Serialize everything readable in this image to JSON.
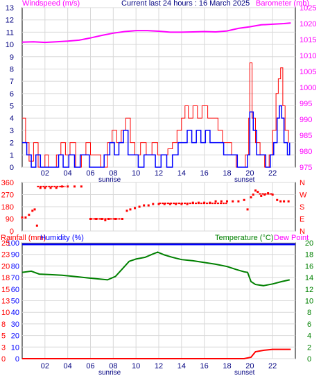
{
  "header": {
    "left": "Windspeed (m/s)",
    "center": "Current last 24 hours : 16 March 2025",
    "right": "Barometer (mb)"
  },
  "colors": {
    "wind": "#ff0000",
    "gust": "#ff0000",
    "avg": "#0000ff",
    "baro": "#ff00ff",
    "dir": "#ff0000",
    "temp": "#008000",
    "hum": "#0000ff",
    "rain": "#ff0000",
    "dew": "#ff00ff",
    "grid": "#d8d8d8"
  },
  "x_axis": {
    "ticks": [
      "02",
      "04",
      "06",
      "08",
      "10",
      "12",
      "14",
      "16",
      "18",
      "20",
      "22"
    ],
    "sunrise_label": "sunrise",
    "sunset_label": "sunset"
  },
  "chart_data": [
    {
      "type": "line",
      "name": "wind_and_pressure",
      "x_hours_range": [
        0,
        24
      ],
      "left_axis": {
        "label": "Windspeed (m/s)",
        "ylim": [
          0,
          13
        ],
        "ticks": [
          "0",
          "1",
          "2",
          "3",
          "4",
          "5",
          "6",
          "7",
          "8",
          "9",
          "10",
          "11",
          "12",
          "13"
        ]
      },
      "right_axis": {
        "label": "Barometer (mb)",
        "ylim": [
          975,
          1025
        ],
        "ticks": [
          "975",
          "980",
          "985",
          "990",
          "995",
          "1000",
          "1005",
          "1010",
          "1015",
          "1020",
          "1025"
        ]
      },
      "series": [
        {
          "name": "Barometer (mb)",
          "axis": "right",
          "points": [
            [
              0,
              1014.2
            ],
            [
              1,
              1014.3
            ],
            [
              2,
              1014.1
            ],
            [
              3,
              1014.3
            ],
            [
              4,
              1014.5
            ],
            [
              5,
              1014.8
            ],
            [
              6,
              1015.5
            ],
            [
              7,
              1016.3
            ],
            [
              8,
              1017
            ],
            [
              9,
              1017.5
            ],
            [
              10,
              1017.8
            ],
            [
              11,
              1017.8
            ],
            [
              12,
              1017.6
            ],
            [
              13,
              1017.3
            ],
            [
              14,
              1017.3
            ],
            [
              15,
              1017.4
            ],
            [
              16,
              1017.5
            ],
            [
              17,
              1017.4
            ],
            [
              18,
              1017.7
            ],
            [
              19,
              1018.5
            ],
            [
              20,
              1019
            ],
            [
              21,
              1019.6
            ],
            [
              22,
              1019.8
            ],
            [
              23,
              1020
            ],
            [
              23.6,
              1020.2
            ]
          ]
        },
        {
          "name": "gust",
          "axis": "left",
          "points": [
            [
              0,
              4
            ],
            [
              0.3,
              2
            ],
            [
              0.6,
              0.5
            ],
            [
              1,
              2
            ],
            [
              1.4,
              0
            ],
            [
              2,
              1
            ],
            [
              2.3,
              0
            ],
            [
              3,
              1
            ],
            [
              3.4,
              2
            ],
            [
              3.8,
              1
            ],
            [
              4.2,
              2
            ],
            [
              4.7,
              0
            ],
            [
              5.2,
              1
            ],
            [
              5.6,
              2
            ],
            [
              6,
              1
            ],
            [
              6.4,
              1
            ],
            [
              6.9,
              0
            ],
            [
              7.5,
              2
            ],
            [
              7.9,
              3
            ],
            [
              8.3,
              2
            ],
            [
              8.7,
              3
            ],
            [
              9.1,
              4
            ],
            [
              9.5,
              2
            ],
            [
              9.9,
              1
            ],
            [
              10.4,
              2
            ],
            [
              10.9,
              1
            ],
            [
              11.4,
              2
            ],
            [
              11.9,
              1
            ],
            [
              12.4,
              1
            ],
            [
              12.8,
              1.5
            ],
            [
              13.2,
              2
            ],
            [
              13.6,
              3
            ],
            [
              14,
              4
            ],
            [
              14.3,
              5
            ],
            [
              14.6,
              4
            ],
            [
              15,
              5
            ],
            [
              15.4,
              4
            ],
            [
              15.8,
              5
            ],
            [
              16.3,
              4
            ],
            [
              16.8,
              4
            ],
            [
              17.2,
              3
            ],
            [
              17.6,
              2
            ],
            [
              18,
              2
            ],
            [
              18.4,
              1
            ],
            [
              18.8,
              0
            ],
            [
              19.2,
              0
            ],
            [
              19.6,
              1
            ],
            [
              19.9,
              4
            ],
            [
              20,
              8.5
            ],
            [
              20.2,
              4
            ],
            [
              20.5,
              2
            ],
            [
              20.9,
              1
            ],
            [
              21.3,
              0
            ],
            [
              21.7,
              1
            ],
            [
              22,
              3
            ],
            [
              22.3,
              6
            ],
            [
              22.5,
              7.2
            ],
            [
              22.7,
              8.1
            ],
            [
              22.9,
              5
            ],
            [
              23.1,
              3
            ],
            [
              23.4,
              2
            ]
          ]
        },
        {
          "name": "wind",
          "axis": "left",
          "points": [
            [
              0,
              2
            ],
            [
              0.4,
              1
            ],
            [
              0.8,
              0
            ],
            [
              1.2,
              1
            ],
            [
              1.6,
              0
            ],
            [
              2.2,
              0
            ],
            [
              2.7,
              0
            ],
            [
              3.2,
              1
            ],
            [
              3.6,
              0
            ],
            [
              4.1,
              1
            ],
            [
              4.6,
              0
            ],
            [
              5.1,
              1
            ],
            [
              5.5,
              1
            ],
            [
              5.9,
              0
            ],
            [
              6.6,
              0
            ],
            [
              7.2,
              1
            ],
            [
              7.7,
              2
            ],
            [
              8.1,
              1
            ],
            [
              8.5,
              2
            ],
            [
              8.9,
              3
            ],
            [
              9.3,
              1
            ],
            [
              9.7,
              1
            ],
            [
              10.2,
              0
            ],
            [
              10.7,
              1
            ],
            [
              11.2,
              1
            ],
            [
              11.7,
              0
            ],
            [
              12.2,
              1
            ],
            [
              12.7,
              0
            ],
            [
              13.2,
              1
            ],
            [
              13.7,
              2
            ],
            [
              14.1,
              2
            ],
            [
              14.5,
              3
            ],
            [
              14.9,
              2
            ],
            [
              15.3,
              3
            ],
            [
              15.7,
              2
            ],
            [
              16.1,
              3
            ],
            [
              16.5,
              2
            ],
            [
              16.9,
              2
            ],
            [
              17.3,
              2
            ],
            [
              17.7,
              1
            ],
            [
              18.1,
              1
            ],
            [
              18.5,
              1
            ],
            [
              18.9,
              0
            ],
            [
              19.4,
              0
            ],
            [
              19.8,
              1
            ],
            [
              20,
              4.5
            ],
            [
              20.3,
              3
            ],
            [
              20.6,
              1
            ],
            [
              21,
              1
            ],
            [
              21.4,
              0
            ],
            [
              21.8,
              1
            ],
            [
              22.1,
              2
            ],
            [
              22.4,
              4
            ],
            [
              22.6,
              5
            ],
            [
              22.8,
              4
            ],
            [
              23,
              2
            ],
            [
              23.3,
              1
            ],
            [
              23.5,
              2
            ]
          ]
        }
      ]
    },
    {
      "type": "scatter",
      "name": "wind_direction",
      "left_axis": {
        "ylim": [
          0,
          360
        ],
        "ticks": [
          "0",
          "90",
          "180",
          "270",
          "360"
        ]
      },
      "right_axis": {
        "ticks": [
          "N",
          "W",
          "S",
          "E",
          "N"
        ]
      },
      "series": [
        {
          "name": "direction",
          "points": [
            [
              0,
              100
            ],
            [
              0.3,
              100
            ],
            [
              0.6,
              120
            ],
            [
              0.9,
              150
            ],
            [
              1.1,
              160
            ],
            [
              1.3,
              40
            ],
            [
              1.6,
              320
            ],
            [
              2,
              320
            ],
            [
              2.5,
              320
            ],
            [
              3,
              320
            ],
            [
              3.5,
              330
            ],
            [
              4,
              330
            ],
            [
              4.6,
              330
            ],
            [
              5.2,
              330
            ],
            [
              6.0,
              90
            ],
            [
              6.5,
              90
            ],
            [
              7.0,
              90
            ],
            [
              7.3,
              80
            ],
            [
              7.6,
              90
            ],
            [
              8.2,
              90
            ],
            [
              8.8,
              90
            ],
            [
              9.2,
              150
            ],
            [
              9.5,
              160
            ],
            [
              9.9,
              170
            ],
            [
              10.3,
              180
            ],
            [
              10.7,
              190
            ],
            [
              11.1,
              190
            ],
            [
              11.5,
              200
            ],
            [
              12,
              200
            ],
            [
              12.5,
              200
            ],
            [
              13,
              200
            ],
            [
              13.5,
              200
            ],
            [
              14,
              200
            ],
            [
              14.5,
              200
            ],
            [
              15,
              210
            ],
            [
              15.5,
              210
            ],
            [
              16,
              210
            ],
            [
              16.5,
              210
            ],
            [
              17,
              220
            ],
            [
              17.5,
              220
            ],
            [
              18,
              220
            ],
            [
              18.5,
              220
            ],
            [
              19,
              220
            ],
            [
              19.5,
              230
            ],
            [
              19.8,
              160
            ],
            [
              20.1,
              250
            ],
            [
              20.3,
              270
            ],
            [
              20.5,
              300
            ],
            [
              20.7,
              290
            ],
            [
              21,
              260
            ],
            [
              21.3,
              270
            ],
            [
              21.6,
              280
            ],
            [
              22,
              270
            ],
            [
              22.4,
              230
            ],
            [
              22.7,
              220
            ],
            [
              23,
              220
            ],
            [
              23.4,
              220
            ]
          ]
        }
      ]
    },
    {
      "type": "line",
      "name": "temperature_humidity_rain",
      "left_axis": {
        "label": "Rainfall (mm)",
        "ylim": [
          0,
          25
        ],
        "ticks": [
          "0",
          "3",
          "5",
          "8",
          "10",
          "13",
          "15",
          "18",
          "20",
          "23",
          "25"
        ]
      },
      "left_axis_2": {
        "label": "Humidity (%)",
        "ylim": [
          0,
          100
        ],
        "ticks": [
          "0",
          "10",
          "20",
          "30",
          "40",
          "50",
          "60",
          "70",
          "80",
          "90",
          "100"
        ]
      },
      "right_axis": {
        "label": "Temperature (°C)",
        "ylim": [
          0,
          20
        ],
        "ticks": [
          "0",
          "2",
          "4",
          "6",
          "8",
          "10",
          "12",
          "14",
          "16",
          "18",
          "20"
        ]
      },
      "dew_point_label": "Dew Point",
      "series": [
        {
          "name": "Humidity (%)",
          "axis": "hum",
          "points": [
            [
              0,
              98.5
            ],
            [
              24,
              98.5
            ]
          ]
        },
        {
          "name": "Temperature (°C)",
          "axis": "right",
          "points": [
            [
              0,
              14.9
            ],
            [
              0.8,
              15.1
            ],
            [
              1.5,
              14.6
            ],
            [
              2.5,
              14.5
            ],
            [
              3.5,
              14.4
            ],
            [
              4.5,
              14.2
            ],
            [
              5.5,
              14.0
            ],
            [
              6.5,
              13.8
            ],
            [
              7.5,
              13.6
            ],
            [
              8.2,
              14.2
            ],
            [
              8.8,
              15.5
            ],
            [
              9.4,
              16.8
            ],
            [
              10,
              17.2
            ],
            [
              10.8,
              17.5
            ],
            [
              11.4,
              18.0
            ],
            [
              11.9,
              18.4
            ],
            [
              12.5,
              17.9
            ],
            [
              13.2,
              17.5
            ],
            [
              14,
              17.1
            ],
            [
              15,
              16.9
            ],
            [
              16,
              16.6
            ],
            [
              17,
              16.3
            ],
            [
              18,
              15.9
            ],
            [
              18.8,
              15.4
            ],
            [
              19.5,
              15.0
            ],
            [
              19.8,
              14.9
            ],
            [
              20.1,
              13.3
            ],
            [
              20.5,
              12.8
            ],
            [
              21.2,
              12.6
            ],
            [
              22,
              12.9
            ],
            [
              22.8,
              13.3
            ],
            [
              23.5,
              13.6
            ]
          ]
        },
        {
          "name": "Rainfall (mm)",
          "axis": "left",
          "points": [
            [
              0,
              0
            ],
            [
              19.5,
              0
            ],
            [
              20.1,
              0.3
            ],
            [
              20.5,
              1.5
            ],
            [
              21.2,
              1.8
            ],
            [
              22,
              2.0
            ],
            [
              23.6,
              2.0
            ]
          ]
        }
      ]
    }
  ]
}
